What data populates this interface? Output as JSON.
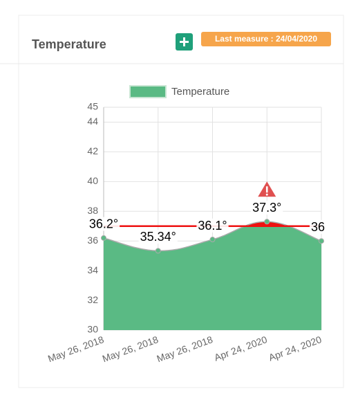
{
  "header": {
    "title": "Temperature",
    "badge": "Last measure : 24/04/2020"
  },
  "chart_data": {
    "type": "area",
    "categories": [
      "May 26, 2018",
      "May 26, 2018",
      "May 26, 2018",
      "Apr 24, 2020",
      "Apr 24, 2020"
    ],
    "series": [
      {
        "name": "Temperature",
        "color": "#5aba84",
        "values": [
          36.2,
          35.34,
          36.1,
          37.3,
          36
        ],
        "value_labels": [
          "36.2°",
          "35.34°",
          "36.1°",
          "37.3°",
          "36"
        ]
      }
    ],
    "threshold": 37,
    "threshold_color": "#ee1111",
    "ylim": [
      30,
      45
    ],
    "yticks": [
      30,
      32,
      34,
      36,
      38,
      40,
      42,
      44,
      45
    ],
    "grid": true
  }
}
